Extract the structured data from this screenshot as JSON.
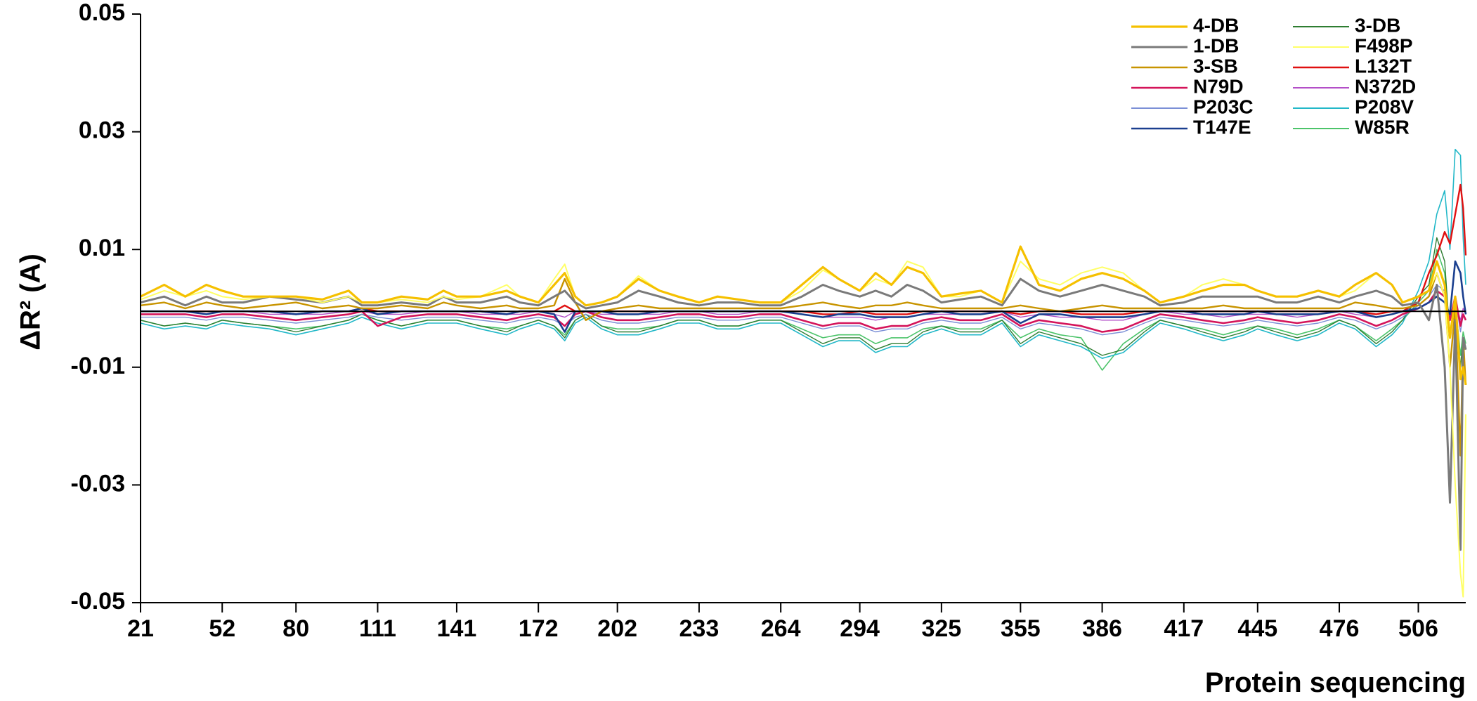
{
  "chart_data": {
    "type": "line",
    "ylabel": "ΔR² (A)",
    "xlabel": "Protein sequencing",
    "ylim": [
      -0.05,
      0.05
    ],
    "y_ticks": [
      "0.05",
      "0.03",
      "0.01",
      "-0.01",
      "-0.03",
      "-0.05"
    ],
    "x_ticks": [
      "21",
      "52",
      "80",
      "111",
      "141",
      "172",
      "202",
      "233",
      "264",
      "294",
      "325",
      "355",
      "386",
      "417",
      "445",
      "476",
      "506"
    ],
    "xlim": [
      21,
      524
    ],
    "baseline": -0.0005,
    "legend_position": "top-right",
    "x": [
      21,
      30,
      38,
      46,
      52,
      60,
      70,
      80,
      90,
      100,
      105,
      111,
      120,
      130,
      136,
      141,
      150,
      160,
      165,
      172,
      178,
      182,
      186,
      190,
      196,
      202,
      210,
      218,
      225,
      233,
      240,
      248,
      256,
      264,
      272,
      280,
      286,
      294,
      300,
      306,
      312,
      318,
      325,
      332,
      340,
      348,
      355,
      362,
      370,
      378,
      386,
      394,
      402,
      408,
      417,
      424,
      432,
      440,
      445,
      452,
      460,
      468,
      476,
      482,
      490,
      496,
      500,
      506,
      510,
      513,
      516,
      518,
      520,
      522,
      523,
      524
    ],
    "series": [
      {
        "name": "4-DB",
        "color": "#f5c000",
        "width": 3.2,
        "values": [
          0.002,
          0.004,
          0.002,
          0.004,
          0.003,
          0.002,
          0.002,
          0.002,
          0.0015,
          0.003,
          0.001,
          0.001,
          0.002,
          0.0015,
          0.003,
          0.002,
          0.002,
          0.003,
          0.002,
          0.001,
          0.004,
          0.006,
          0.002,
          0.0005,
          0.001,
          0.002,
          0.005,
          0.003,
          0.002,
          0.001,
          0.002,
          0.0015,
          0.001,
          0.001,
          0.004,
          0.007,
          0.005,
          0.003,
          0.006,
          0.004,
          0.007,
          0.006,
          0.002,
          0.0025,
          0.003,
          0.001,
          0.0105,
          0.004,
          0.003,
          0.005,
          0.006,
          0.005,
          0.003,
          0.001,
          0.002,
          0.003,
          0.004,
          0.004,
          0.003,
          0.002,
          0.002,
          0.003,
          0.002,
          0.004,
          0.006,
          0.004,
          0.001,
          0.002,
          0.003,
          0.008,
          0.004,
          -0.005,
          0.002,
          -0.012,
          -0.01,
          -0.013
        ]
      },
      {
        "name": "3-DB",
        "color": "#2e7d32",
        "width": 1.4,
        "values": [
          -0.002,
          -0.003,
          -0.0025,
          -0.003,
          -0.002,
          -0.0025,
          -0.003,
          -0.004,
          -0.003,
          -0.002,
          -0.001,
          -0.002,
          -0.003,
          -0.002,
          -0.002,
          -0.002,
          -0.003,
          -0.004,
          -0.003,
          -0.002,
          -0.003,
          -0.005,
          -0.002,
          -0.001,
          -0.003,
          -0.004,
          -0.004,
          -0.003,
          -0.002,
          -0.002,
          -0.003,
          -0.003,
          -0.002,
          -0.002,
          -0.004,
          -0.006,
          -0.005,
          -0.005,
          -0.007,
          -0.006,
          -0.006,
          -0.004,
          -0.003,
          -0.004,
          -0.004,
          -0.002,
          -0.006,
          -0.004,
          -0.005,
          -0.006,
          -0.008,
          -0.007,
          -0.004,
          -0.002,
          -0.003,
          -0.004,
          -0.005,
          -0.004,
          -0.003,
          -0.004,
          -0.005,
          -0.004,
          -0.002,
          -0.003,
          -0.006,
          -0.004,
          -0.002,
          0.002,
          0.004,
          0.012,
          0.008,
          -0.005,
          0.002,
          -0.01,
          -0.005,
          -0.007
        ]
      },
      {
        "name": "1-DB",
        "color": "#7a7a7a",
        "width": 3,
        "values": [
          0.001,
          0.002,
          0.0005,
          0.002,
          0.001,
          0.001,
          0.002,
          0.0015,
          0.001,
          0.002,
          0.0005,
          0.0005,
          0.001,
          0.0005,
          0.002,
          0.001,
          0.001,
          0.002,
          0.001,
          0.0005,
          0.002,
          0.003,
          0.001,
          0.0,
          0.0005,
          0.001,
          0.003,
          0.002,
          0.001,
          0.0005,
          0.001,
          0.001,
          0.0005,
          0.0005,
          0.002,
          0.004,
          0.003,
          0.002,
          0.003,
          0.002,
          0.004,
          0.003,
          0.001,
          0.0015,
          0.002,
          0.0005,
          0.005,
          0.003,
          0.002,
          0.003,
          0.004,
          0.003,
          0.002,
          0.0005,
          0.001,
          0.002,
          0.002,
          0.002,
          0.002,
          0.001,
          0.001,
          0.002,
          0.001,
          0.002,
          0.003,
          0.002,
          0.0005,
          0.001,
          -0.002,
          0.004,
          -0.01,
          -0.033,
          -0.002,
          -0.041,
          -0.005,
          -0.007
        ]
      },
      {
        "name": "F498P",
        "color": "#ffff66",
        "width": 2,
        "values": [
          0.0015,
          0.003,
          0.002,
          0.003,
          0.002,
          0.0015,
          0.002,
          0.002,
          0.001,
          0.002,
          0.001,
          0.001,
          0.0015,
          0.001,
          0.002,
          0.0015,
          0.002,
          0.004,
          0.002,
          0.001,
          0.005,
          0.0075,
          0.002,
          0.0005,
          0.001,
          0.002,
          0.0055,
          0.003,
          0.002,
          0.001,
          0.002,
          0.0015,
          0.001,
          0.001,
          0.003,
          0.0065,
          0.005,
          0.003,
          0.005,
          0.004,
          0.008,
          0.007,
          0.002,
          0.002,
          0.003,
          0.001,
          0.008,
          0.005,
          0.004,
          0.006,
          0.007,
          0.006,
          0.003,
          0.001,
          0.002,
          0.004,
          0.005,
          0.004,
          0.003,
          0.002,
          0.002,
          0.003,
          0.002,
          0.003,
          0.006,
          0.004,
          0.001,
          0.002,
          0.003,
          0.006,
          0.002,
          -0.01,
          -0.03,
          -0.045,
          -0.049,
          -0.018
        ]
      },
      {
        "name": "3-SB",
        "color": "#c89400",
        "width": 2.4,
        "values": [
          0.0005,
          0.001,
          0.0,
          0.001,
          0.0005,
          0.0,
          0.0005,
          0.001,
          0.0,
          0.0005,
          0.0,
          0.0,
          0.0005,
          0.0,
          0.001,
          0.0005,
          0.0,
          0.0005,
          0.0,
          0.0,
          0.0005,
          0.005,
          0.001,
          -0.002,
          -0.0005,
          0.0,
          0.0005,
          0.0,
          0.0,
          0.0,
          0.0,
          0.0,
          0.0,
          0.0,
          0.0005,
          0.001,
          0.0005,
          0.0,
          0.0005,
          0.0005,
          0.001,
          0.0005,
          0.0,
          0.0,
          0.0,
          0.0,
          0.0005,
          0.0,
          -0.0005,
          0.0,
          0.0005,
          0.0,
          0.0,
          0.0,
          0.0,
          0.0,
          0.0005,
          0.0,
          0.0,
          0.0,
          0.0,
          0.0,
          0.0,
          0.001,
          0.0005,
          0.0,
          0.0,
          0.0005,
          0.002,
          0.006,
          0.002,
          -0.01,
          0.0,
          -0.025,
          -0.005,
          -0.013
        ]
      },
      {
        "name": "L132T",
        "color": "#e01010",
        "width": 2.4,
        "values": [
          -0.0005,
          -0.0005,
          -0.0005,
          -0.0005,
          -0.0005,
          -0.0005,
          -0.0005,
          -0.001,
          -0.0005,
          -0.0005,
          0.0,
          -0.0005,
          -0.0005,
          -0.0005,
          -0.0005,
          -0.0005,
          -0.0005,
          -0.001,
          -0.0005,
          -0.0005,
          -0.0005,
          0.0005,
          -0.0005,
          -0.0005,
          -0.0005,
          -0.0005,
          -0.0005,
          -0.0005,
          -0.0005,
          -0.0005,
          -0.0005,
          -0.0005,
          -0.0005,
          -0.0005,
          -0.0005,
          -0.001,
          -0.001,
          -0.0005,
          -0.001,
          -0.001,
          -0.001,
          -0.0005,
          -0.0005,
          -0.0005,
          -0.0005,
          -0.0005,
          -0.001,
          -0.0005,
          -0.0005,
          -0.001,
          -0.001,
          -0.001,
          -0.0005,
          -0.0005,
          -0.0005,
          -0.0005,
          -0.0005,
          -0.0005,
          -0.0005,
          -0.0005,
          -0.0005,
          -0.0005,
          -0.0005,
          -0.0005,
          -0.001,
          -0.0005,
          -0.0005,
          0.001,
          0.006,
          0.009,
          0.013,
          0.011,
          0.016,
          0.021,
          0.017,
          0.009
        ]
      },
      {
        "name": "N79D",
        "color": "#d4145a",
        "width": 2.6,
        "values": [
          -0.001,
          -0.001,
          -0.001,
          -0.0015,
          -0.001,
          -0.001,
          -0.0015,
          -0.002,
          -0.0015,
          -0.001,
          -0.0005,
          -0.003,
          -0.0015,
          -0.001,
          -0.001,
          -0.001,
          -0.0015,
          -0.002,
          -0.0015,
          -0.001,
          -0.0015,
          -0.003,
          -0.001,
          -0.0005,
          -0.0015,
          -0.002,
          -0.002,
          -0.0015,
          -0.001,
          -0.001,
          -0.0015,
          -0.0015,
          -0.001,
          -0.001,
          -0.002,
          -0.003,
          -0.0025,
          -0.0025,
          -0.0035,
          -0.003,
          -0.003,
          -0.002,
          -0.0015,
          -0.002,
          -0.002,
          -0.001,
          -0.003,
          -0.002,
          -0.0025,
          -0.003,
          -0.004,
          -0.0035,
          -0.002,
          -0.001,
          -0.0015,
          -0.002,
          -0.0025,
          -0.002,
          -0.0015,
          -0.002,
          -0.0025,
          -0.002,
          -0.001,
          -0.0015,
          -0.003,
          -0.002,
          -0.001,
          0.0,
          0.001,
          0.003,
          0.002,
          -0.002,
          0.002,
          -0.003,
          -0.001,
          -0.002
        ]
      },
      {
        "name": "N372D",
        "color": "#b34fc8",
        "width": 1.4,
        "values": [
          -0.0005,
          -0.0005,
          -0.0005,
          -0.001,
          -0.0005,
          -0.0005,
          -0.001,
          -0.001,
          -0.001,
          -0.0005,
          -0.0005,
          -0.001,
          -0.001,
          -0.0005,
          -0.0005,
          -0.0005,
          -0.001,
          -0.001,
          -0.001,
          -0.0005,
          -0.001,
          -0.0015,
          -0.0005,
          -0.0005,
          -0.001,
          -0.001,
          -0.001,
          -0.001,
          -0.0005,
          -0.0005,
          -0.001,
          -0.001,
          -0.0005,
          -0.0005,
          -0.001,
          -0.0015,
          -0.0015,
          -0.0015,
          -0.002,
          -0.0015,
          -0.0015,
          -0.001,
          -0.001,
          -0.001,
          -0.001,
          -0.0005,
          -0.0015,
          -0.001,
          -0.0015,
          -0.0015,
          -0.002,
          -0.002,
          -0.001,
          -0.0005,
          -0.001,
          -0.001,
          -0.0015,
          -0.001,
          -0.001,
          -0.001,
          -0.0015,
          -0.001,
          -0.0005,
          -0.001,
          -0.0015,
          -0.001,
          -0.0005,
          0.0,
          0.001,
          0.002,
          0.001,
          -0.001,
          0.001,
          -0.002,
          0.0,
          -0.001
        ]
      },
      {
        "name": "P203C",
        "color": "#7b8fd6",
        "width": 1.4,
        "values": [
          -0.0015,
          -0.0015,
          -0.0015,
          -0.002,
          -0.0015,
          -0.0015,
          -0.002,
          -0.0025,
          -0.002,
          -0.0015,
          -0.001,
          -0.0015,
          -0.002,
          -0.0015,
          -0.0015,
          -0.0015,
          -0.002,
          -0.0025,
          -0.002,
          -0.0015,
          -0.002,
          -0.003,
          -0.0015,
          -0.001,
          -0.002,
          -0.0025,
          -0.0025,
          -0.002,
          -0.0015,
          -0.0015,
          -0.002,
          -0.002,
          -0.0015,
          -0.0015,
          -0.0025,
          -0.0035,
          -0.003,
          -0.003,
          -0.004,
          -0.0035,
          -0.0035,
          -0.0025,
          -0.002,
          -0.0025,
          -0.0025,
          -0.0015,
          -0.0035,
          -0.0025,
          -0.003,
          -0.0035,
          -0.0045,
          -0.004,
          -0.0025,
          -0.0015,
          -0.002,
          -0.0025,
          -0.003,
          -0.0025,
          -0.002,
          -0.0025,
          -0.003,
          -0.0025,
          -0.0015,
          -0.002,
          -0.0035,
          -0.0025,
          -0.0015,
          0.0005,
          0.002,
          0.004,
          0.003,
          -0.002,
          0.002,
          -0.004,
          -0.001,
          -0.002
        ]
      },
      {
        "name": "P208V",
        "color": "#22b8c8",
        "width": 1.6,
        "values": [
          -0.0025,
          -0.0035,
          -0.003,
          -0.0035,
          -0.0025,
          -0.003,
          -0.0035,
          -0.0045,
          -0.0035,
          -0.0025,
          -0.0015,
          -0.0025,
          -0.0035,
          -0.0025,
          -0.0025,
          -0.0025,
          -0.0035,
          -0.0045,
          -0.0035,
          -0.0025,
          -0.0035,
          -0.0055,
          -0.0025,
          -0.0015,
          -0.0035,
          -0.0045,
          -0.0045,
          -0.0035,
          -0.0025,
          -0.0025,
          -0.0035,
          -0.0035,
          -0.0025,
          -0.0025,
          -0.0045,
          -0.0065,
          -0.0055,
          -0.0055,
          -0.0075,
          -0.0065,
          -0.0065,
          -0.0045,
          -0.0035,
          -0.0045,
          -0.0045,
          -0.0025,
          -0.0065,
          -0.0045,
          -0.0055,
          -0.0065,
          -0.0085,
          -0.0075,
          -0.0045,
          -0.0025,
          -0.0035,
          -0.0045,
          -0.0055,
          -0.0045,
          -0.0035,
          -0.0045,
          -0.0055,
          -0.0045,
          -0.0025,
          -0.0035,
          -0.0065,
          -0.0045,
          -0.0025,
          0.003,
          0.008,
          0.016,
          0.02,
          0.01,
          0.027,
          0.026,
          0.012,
          0.004
        ]
      },
      {
        "name": "T147E",
        "color": "#1a3f8f",
        "width": 2.6,
        "values": [
          -0.0005,
          -0.0005,
          -0.0005,
          -0.001,
          -0.0005,
          -0.0005,
          -0.0005,
          -0.001,
          -0.0005,
          -0.0005,
          0.0,
          -0.001,
          -0.0005,
          -0.0005,
          -0.0005,
          -0.0005,
          -0.0005,
          -0.001,
          -0.0005,
          -0.0005,
          -0.001,
          -0.004,
          -0.0005,
          -0.0005,
          -0.0005,
          -0.001,
          -0.001,
          -0.0005,
          -0.0005,
          -0.0005,
          -0.0005,
          -0.0005,
          -0.0005,
          -0.0005,
          -0.001,
          -0.0015,
          -0.001,
          -0.001,
          -0.0015,
          -0.0015,
          -0.0015,
          -0.001,
          -0.0005,
          -0.001,
          -0.001,
          -0.0005,
          -0.0025,
          -0.001,
          -0.001,
          -0.0015,
          -0.0015,
          -0.0015,
          -0.001,
          -0.0005,
          -0.0005,
          -0.001,
          -0.001,
          -0.001,
          -0.0005,
          -0.001,
          -0.001,
          -0.001,
          -0.0005,
          -0.0005,
          -0.0015,
          -0.001,
          -0.0005,
          0.0,
          0.001,
          0.002,
          0.001,
          -0.001,
          0.008,
          0.006,
          0.002,
          -0.001
        ]
      },
      {
        "name": "W85R",
        "color": "#4cc46a",
        "width": 1.6,
        "values": [
          -0.002,
          -0.003,
          -0.0025,
          -0.003,
          -0.002,
          -0.0025,
          -0.003,
          -0.0035,
          -0.003,
          -0.002,
          -0.001,
          -0.002,
          -0.003,
          -0.002,
          -0.002,
          -0.002,
          -0.003,
          -0.0035,
          -0.003,
          -0.002,
          -0.003,
          -0.0045,
          -0.002,
          -0.001,
          -0.003,
          -0.0035,
          -0.0035,
          -0.003,
          -0.002,
          -0.002,
          -0.003,
          -0.003,
          -0.002,
          -0.002,
          -0.0035,
          -0.005,
          -0.0045,
          -0.0045,
          -0.006,
          -0.005,
          -0.005,
          -0.0035,
          -0.003,
          -0.0035,
          -0.0035,
          -0.002,
          -0.005,
          -0.0035,
          -0.0045,
          -0.005,
          -0.0105,
          -0.006,
          -0.0035,
          -0.002,
          -0.003,
          -0.0035,
          -0.0045,
          -0.0035,
          -0.003,
          -0.0035,
          -0.0045,
          -0.0035,
          -0.002,
          -0.003,
          -0.0055,
          -0.0035,
          -0.002,
          0.001,
          0.003,
          0.01,
          0.006,
          -0.004,
          0.001,
          -0.008,
          -0.004,
          -0.006
        ]
      }
    ]
  }
}
